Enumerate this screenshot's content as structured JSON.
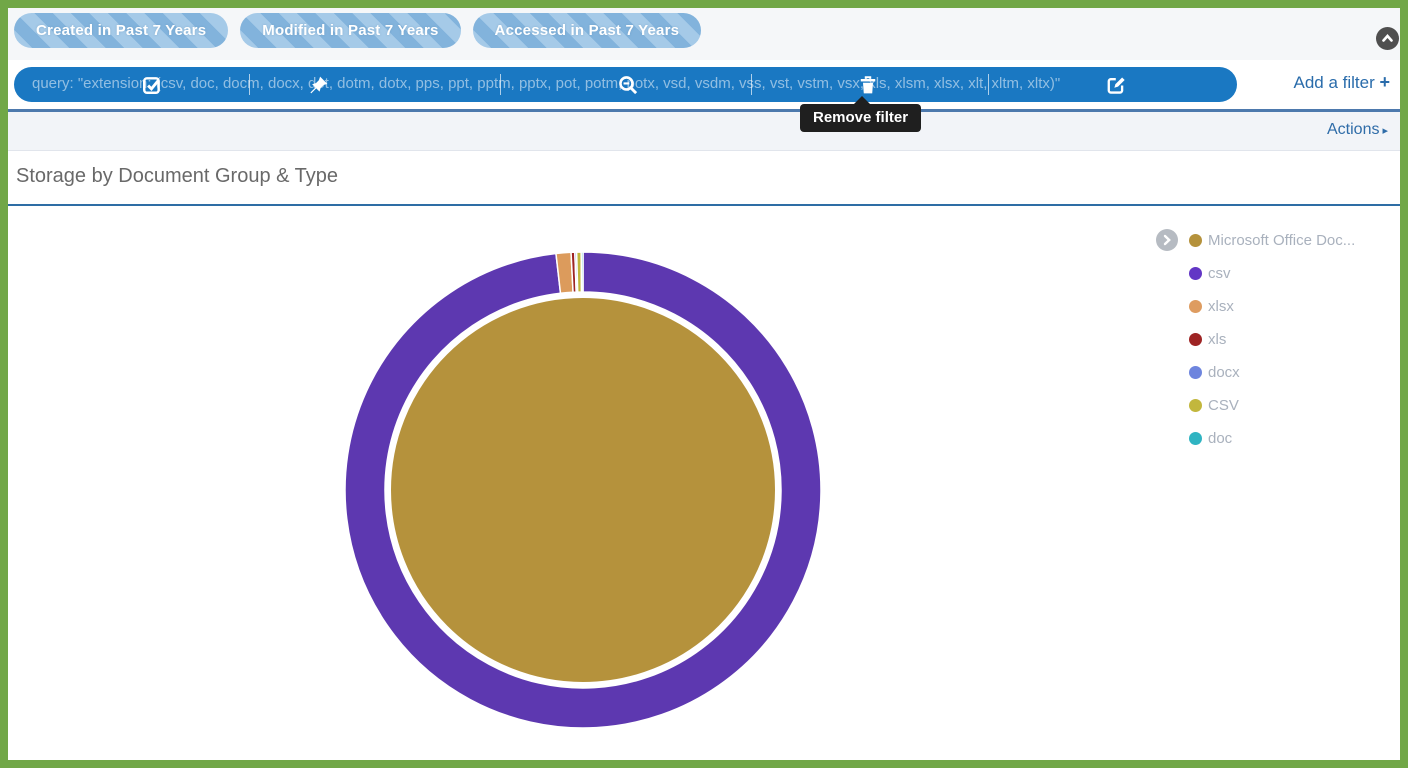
{
  "window": {
    "frame_color": "#71a747"
  },
  "filter_bar": {
    "pills": [
      {
        "label": "Created in Past 7 Years"
      },
      {
        "label": "Modified in Past 7 Years"
      },
      {
        "label": "Accessed in Past 7 Years"
      }
    ]
  },
  "query_bar": {
    "query_text": "query: \"extension: (csv, doc, docm, docx, dot, dotm, dotx, pps, ppt, pptm, pptx, pot, potm, potx, vsd, vsdm, vss, vst, vstm, vsx, xls, xlsm, xlsx, xlt, xltm, xltx)\"",
    "icon_names": [
      "checkbox-icon",
      "pin-icon",
      "zoom-out-icon",
      "trash-icon",
      "edit-icon"
    ],
    "add_filter_label": "Add a filter",
    "add_filter_plus": "+"
  },
  "tooltip": {
    "text": "Remove filter"
  },
  "actions": {
    "label": "Actions",
    "arrow": "▸"
  },
  "panel": {
    "title": "Storage by Document Group & Type"
  },
  "chart_data": {
    "type": "pie",
    "subtype": "sunburst",
    "title": "Storage by Document Group & Type",
    "legend_position": "right",
    "start_angle_deg": 0,
    "direction": "clockwise",
    "inner_ring": [
      {
        "label": "Microsoft Office Doc...",
        "color": "#b5923c",
        "percent": 100
      }
    ],
    "outer_ring": [
      {
        "label": "csv",
        "color": "#5d38b0",
        "percent": 97.0
      },
      {
        "label": "xlsx",
        "color": "#dc9b5c",
        "percent": 1.0
      },
      {
        "label": "xls",
        "color": "#9e2424",
        "percent": 0.25
      },
      {
        "label": "docx",
        "color": "#6e85de",
        "percent": 0.12
      },
      {
        "label": "CSV",
        "color": "#c2b73d",
        "percent": 0.3
      },
      {
        "label": "doc",
        "color": "#2fb4c2",
        "percent": 0.12
      }
    ],
    "legend": [
      {
        "label": "Microsoft Office Doc...",
        "color": "#b5923c"
      },
      {
        "label": "csv",
        "color": "#6236c5"
      },
      {
        "label": "xlsx",
        "color": "#de9c60"
      },
      {
        "label": "xls",
        "color": "#9e2424"
      },
      {
        "label": "docx",
        "color": "#6e85de"
      },
      {
        "label": "CSV",
        "color": "#c2b73d"
      },
      {
        "label": "doc",
        "color": "#2fb4c2"
      }
    ]
  }
}
